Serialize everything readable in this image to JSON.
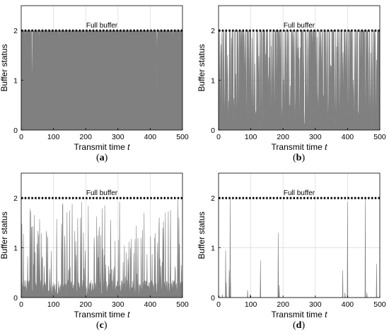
{
  "full_buffer_label": "Full buffer",
  "colors": {
    "trace": "#808080",
    "axis": "#000000",
    "grid": "#d9d9d9",
    "reference": "#000000"
  },
  "panel_letters": [
    "a",
    "b",
    "c",
    "d"
  ],
  "chart_data": [
    {
      "type": "area",
      "panel": "a",
      "xlabel": "Transmit time",
      "xlabel_italic": "t",
      "ylabel": "Buffer status",
      "xlim": [
        0,
        500
      ],
      "ylim": [
        0,
        2.5
      ],
      "xticks": [
        0,
        100,
        200,
        300,
        400,
        500
      ],
      "yticks": [
        0,
        1,
        2
      ],
      "grid": true,
      "reference_line": {
        "y": 2,
        "label": "Full buffer",
        "style": "dotted"
      },
      "description_values": "mostly at full buffer (2) with occasional dips",
      "baseline": 2,
      "events": [
        {
          "t": 12,
          "y": 1.72
        },
        {
          "t": 33,
          "y": 0.58
        },
        {
          "t": 34,
          "y": 1.15
        },
        {
          "t": 55,
          "y": 1.6
        },
        {
          "t": 78,
          "y": 1.85
        },
        {
          "t": 118,
          "y": 1.7
        },
        {
          "t": 150,
          "y": 1.9
        },
        {
          "t": 198,
          "y": 1.82
        },
        {
          "t": 258,
          "y": 1.88
        },
        {
          "t": 318,
          "y": 1.86
        },
        {
          "t": 360,
          "y": 1.9
        },
        {
          "t": 420,
          "y": 0.8
        },
        {
          "t": 423,
          "y": 1.3
        },
        {
          "t": 470,
          "y": 1.75
        },
        {
          "t": 488,
          "y": 1.84
        }
      ]
    },
    {
      "type": "area",
      "panel": "b",
      "xlabel": "Transmit time",
      "xlabel_italic": "t",
      "ylabel": "Buffer status",
      "xlim": [
        0,
        500
      ],
      "ylim": [
        0,
        2.5
      ],
      "xticks": [
        0,
        100,
        200,
        300,
        400,
        500
      ],
      "yticks": [
        0,
        1,
        2
      ],
      "grid": true,
      "reference_line": {
        "y": 2,
        "label": "Full buffer",
        "style": "dotted"
      },
      "baseline": 2,
      "pattern": "frequent deep drops, heavily fluctuating between 0 and 2"
    },
    {
      "type": "area",
      "panel": "c",
      "xlabel": "Transmit time",
      "xlabel_italic": "t",
      "ylabel": "Buffer status",
      "xlim": [
        0,
        500
      ],
      "ylim": [
        0,
        2.5
      ],
      "xticks": [
        0,
        100,
        200,
        300,
        400,
        500
      ],
      "yticks": [
        0,
        1,
        2
      ],
      "grid": true,
      "reference_line": {
        "y": 2,
        "label": "Full buffer",
        "style": "dotted"
      },
      "baseline": 0,
      "pattern": "mostly low with many spikes up to 2"
    },
    {
      "type": "area",
      "panel": "d",
      "xlabel": "Transmit time",
      "xlabel_italic": "t",
      "ylabel": "Buffer status",
      "xlim": [
        0,
        500
      ],
      "ylim": [
        0,
        2.5
      ],
      "xticks": [
        0,
        100,
        200,
        300,
        400,
        500
      ],
      "yticks": [
        0,
        1,
        2
      ],
      "grid": true,
      "reference_line": {
        "y": 2,
        "label": "Full buffer",
        "style": "dotted"
      },
      "baseline": 0,
      "events": [
        {
          "t": 2,
          "y": 0.04
        },
        {
          "t": 12,
          "y": 0.06
        },
        {
          "t": 22,
          "y": 0.95
        },
        {
          "t": 24,
          "y": 0.3
        },
        {
          "t": 33,
          "y": 0.55
        },
        {
          "t": 36,
          "y": 1.98
        },
        {
          "t": 37,
          "y": 0.45
        },
        {
          "t": 90,
          "y": 0.15
        },
        {
          "t": 98,
          "y": 0.07
        },
        {
          "t": 130,
          "y": 0.74
        },
        {
          "t": 185,
          "y": 1.3
        },
        {
          "t": 188,
          "y": 0.25
        },
        {
          "t": 385,
          "y": 0.55
        },
        {
          "t": 392,
          "y": 0.1
        },
        {
          "t": 400,
          "y": 1.92
        },
        {
          "t": 455,
          "y": 1.98
        },
        {
          "t": 460,
          "y": 0.1
        },
        {
          "t": 490,
          "y": 0.68
        }
      ]
    }
  ]
}
